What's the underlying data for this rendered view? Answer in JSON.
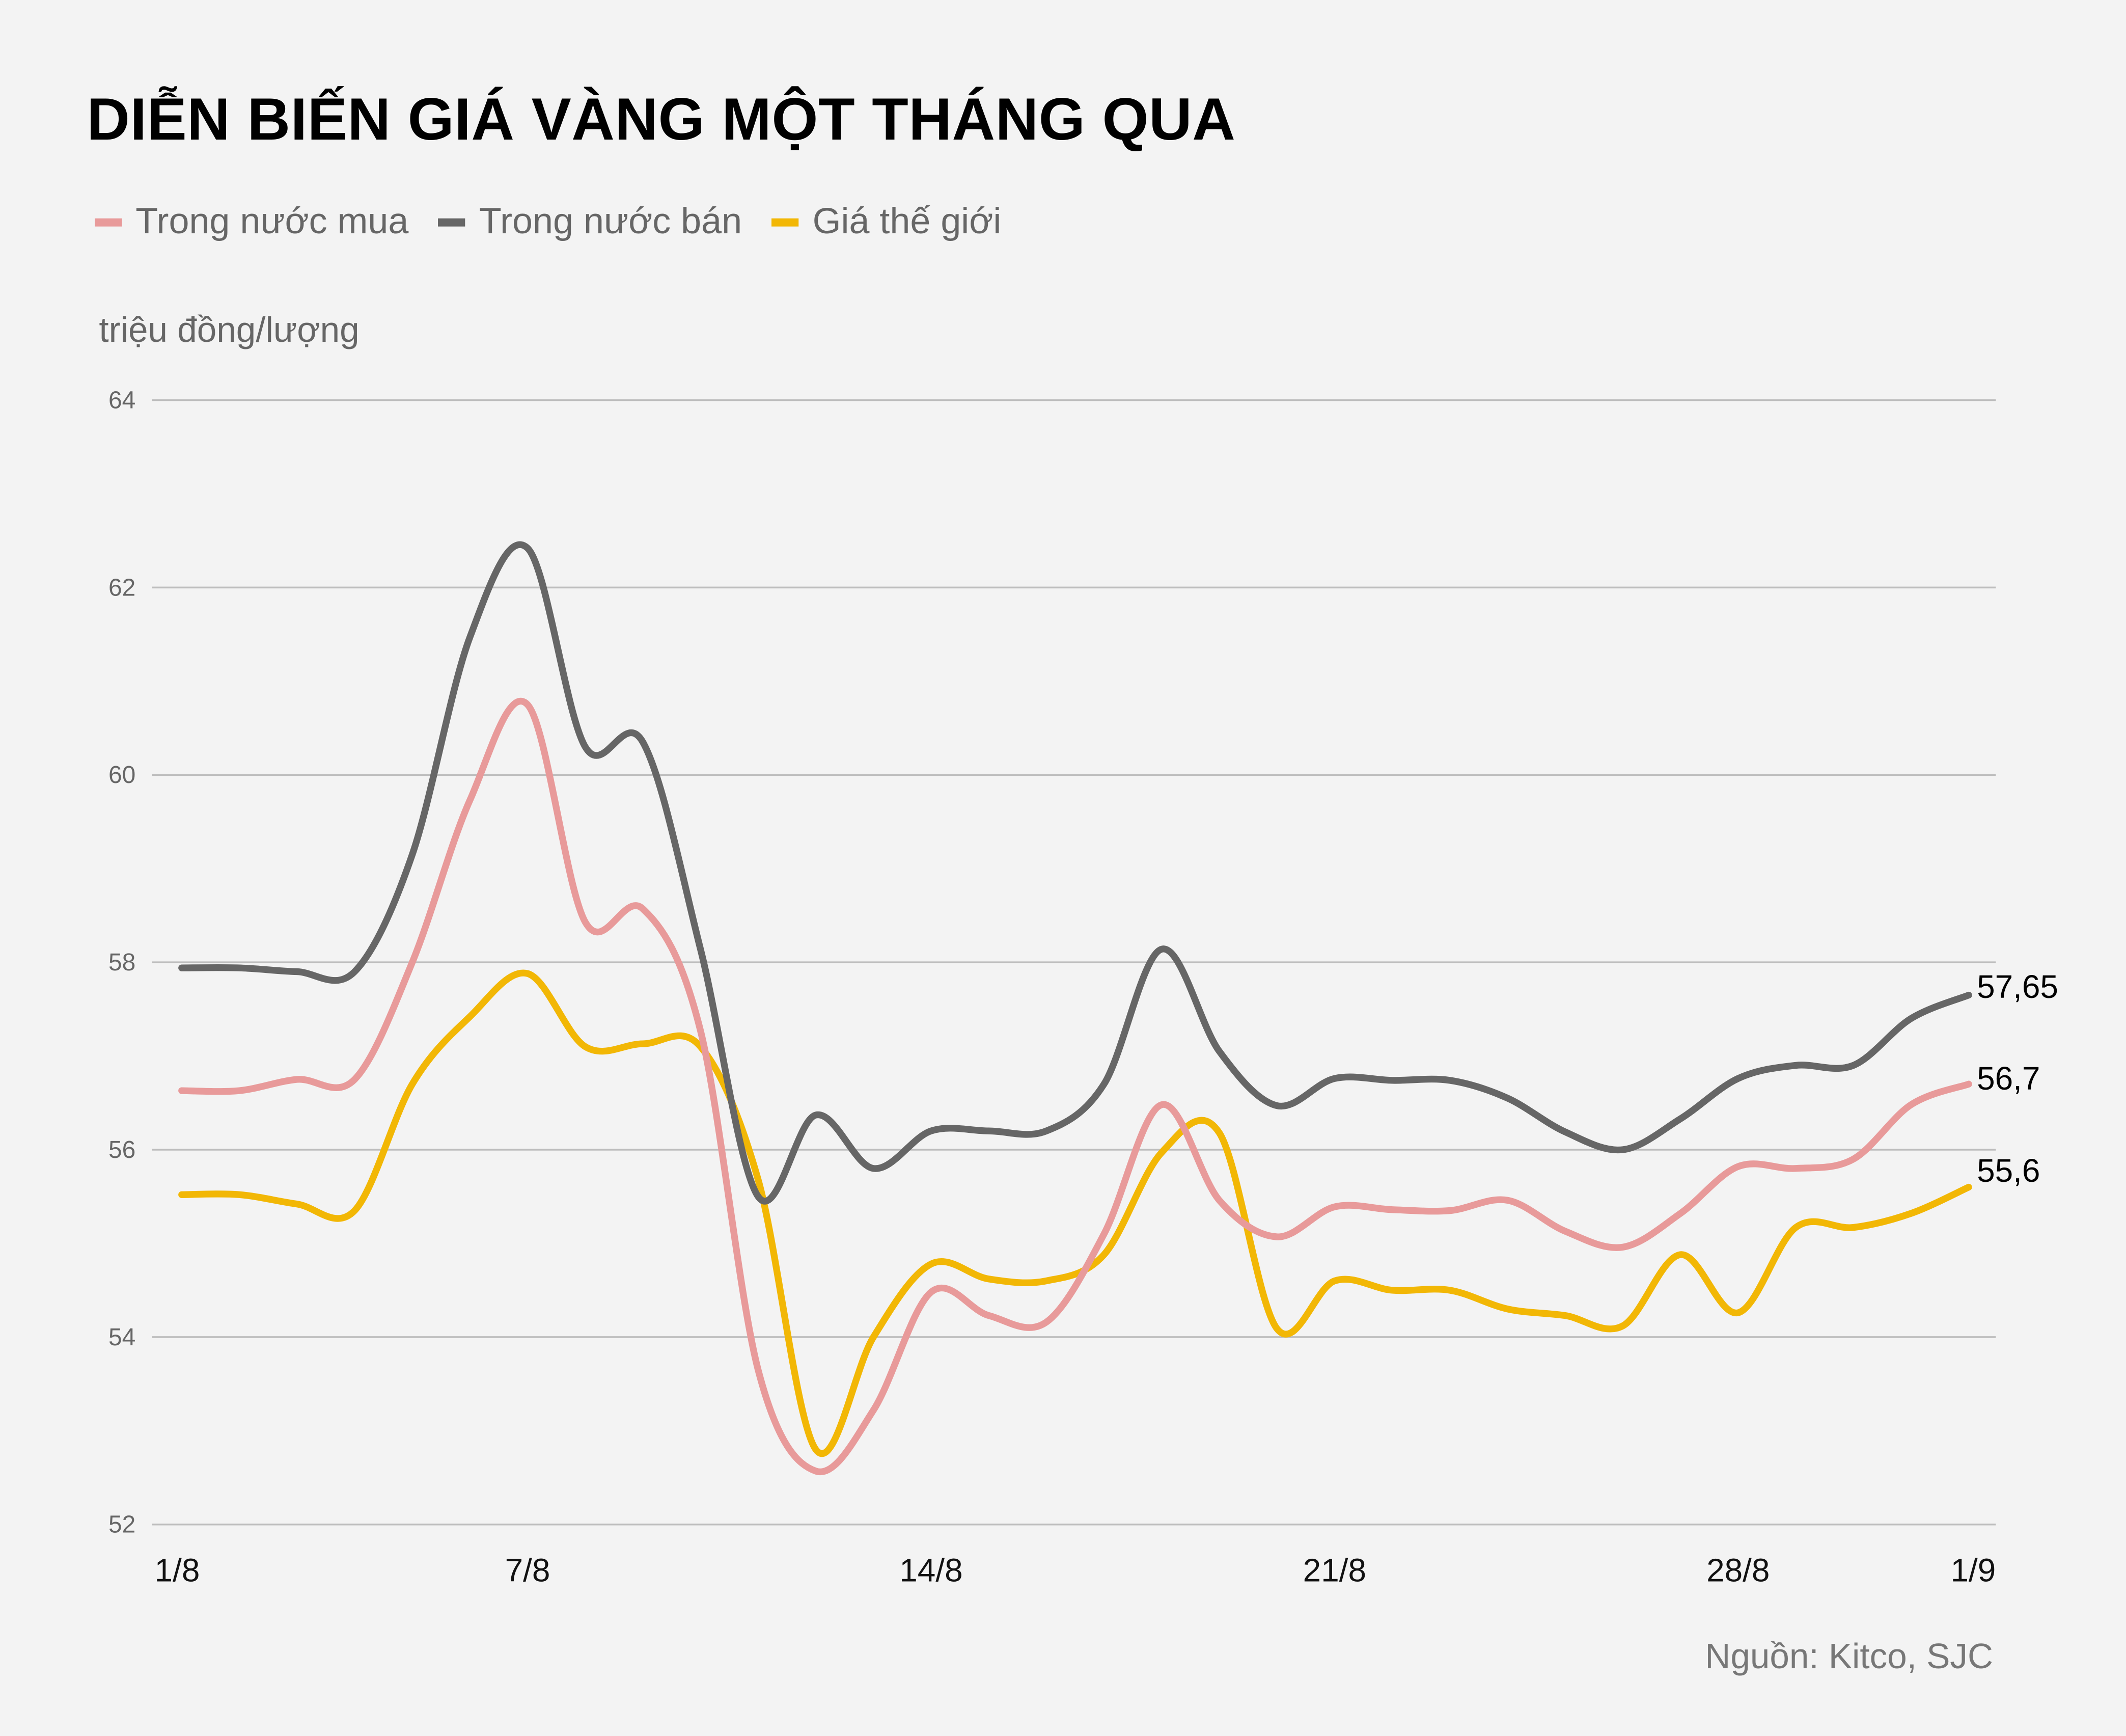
{
  "chart_data": {
    "type": "line",
    "title": "DIỄN BIẾN GIÁ VÀNG MỘT THÁNG QUA",
    "ylabel": "triệu đồng/lượng",
    "xlabel": "",
    "source": "Nguồn: Kitco, SJC",
    "ylim": [
      52,
      64
    ],
    "y_ticks": [
      52,
      54,
      56,
      58,
      60,
      62,
      64
    ],
    "x_tick_labels": [
      "1/8",
      "7/8",
      "14/8",
      "21/8",
      "28/8",
      "1/9"
    ],
    "grid": true,
    "legend_position": "top-left",
    "x": [
      "1/8",
      "2/8",
      "3/8",
      "4/8",
      "5/8",
      "6/8",
      "7/8",
      "8/8",
      "9/8",
      "10/8",
      "11/8",
      "12/8",
      "13/8",
      "14/8",
      "15/8",
      "16/8",
      "17/8",
      "18/8",
      "19/8",
      "20/8",
      "21/8",
      "22/8",
      "23/8",
      "24/8",
      "25/8",
      "26/8",
      "27/8",
      "28/8",
      "29/8",
      "30/8",
      "31/8",
      "1/9"
    ],
    "series": [
      {
        "name": "Trong nước mua",
        "color": "#e89a9a",
        "end_label": "56,7",
        "values": [
          56.63,
          56.63,
          56.75,
          56.75,
          58.0,
          59.73,
          60.75,
          58.43,
          58.57,
          57.27,
          53.65,
          52.57,
          53.22,
          54.48,
          54.23,
          54.16,
          55.1,
          56.48,
          55.46,
          55.07,
          55.39,
          55.36,
          55.35,
          55.46,
          55.13,
          54.96,
          55.32,
          55.82,
          55.8,
          55.9,
          56.48,
          56.7
        ]
      },
      {
        "name": "Trong nước bán",
        "color": "#666666",
        "end_label": "57,65",
        "values": [
          57.94,
          57.94,
          57.9,
          57.9,
          59.15,
          61.47,
          62.42,
          60.3,
          60.35,
          58.14,
          55.5,
          56.37,
          55.8,
          56.2,
          56.2,
          56.2,
          56.7,
          58.14,
          57.05,
          56.47,
          56.76,
          56.74,
          56.74,
          56.55,
          56.19,
          56.0,
          56.33,
          56.76,
          56.9,
          56.9,
          57.4,
          57.65
        ]
      },
      {
        "name": "Giá thế giới",
        "color": "#f2b705",
        "end_label": "55,6",
        "values": [
          55.52,
          55.52,
          55.42,
          55.35,
          56.7,
          57.42,
          57.88,
          57.1,
          57.13,
          57.1,
          55.68,
          52.8,
          54.0,
          54.78,
          54.62,
          54.6,
          54.88,
          55.97,
          56.18,
          54.09,
          54.6,
          54.5,
          54.5,
          54.3,
          54.23,
          54.12,
          54.88,
          54.26,
          55.17,
          55.17,
          55.32,
          55.6
        ]
      }
    ]
  }
}
